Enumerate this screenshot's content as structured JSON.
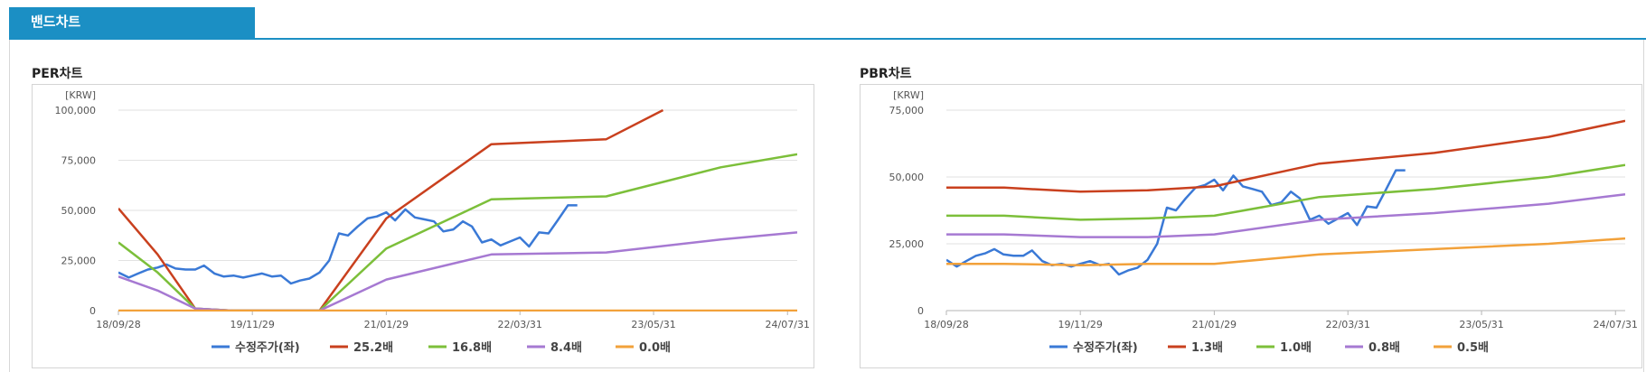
{
  "tab": {
    "label": "밴드차트"
  },
  "charts": [
    {
      "title": "PER차트"
    },
    {
      "title": "PBR차트"
    }
  ],
  "chart_data": [
    {
      "type": "line",
      "title": "PER차트",
      "unit_label": "[KRW]",
      "ylim": [
        0,
        100000
      ],
      "yticks": [
        0,
        25000,
        50000,
        75000,
        100000
      ],
      "ytick_labels": [
        "0",
        "25,000",
        "50,000",
        "75,000",
        "100,000"
      ],
      "xlim": [
        "2018-09-28",
        "2024-08-31"
      ],
      "xticks": [
        "2018-09-28",
        "2019-11-29",
        "2021-01-29",
        "2022-03-31",
        "2023-05-31",
        "2024-07-31"
      ],
      "xtick_labels": [
        "18/09/28",
        "19/11/29",
        "21/01/29",
        "22/03/31",
        "23/05/31",
        "24/07/31"
      ],
      "grid": true,
      "legend_position": "bottom",
      "series": [
        {
          "name": "수정주가(좌)",
          "color": "#3a79d6",
          "points": [
            [
              "2018-09-28",
              19000
            ],
            [
              "2018-10-31",
              16500
            ],
            [
              "2018-11-30",
              18500
            ],
            [
              "2018-12-31",
              20500
            ],
            [
              "2019-01-31",
              21500
            ],
            [
              "2019-02-28",
              23000
            ],
            [
              "2019-03-29",
              21000
            ],
            [
              "2019-04-30",
              20500
            ],
            [
              "2019-05-31",
              20500
            ],
            [
              "2019-06-28",
              22500
            ],
            [
              "2019-07-31",
              18500
            ],
            [
              "2019-08-30",
              17000
            ],
            [
              "2019-09-30",
              17500
            ],
            [
              "2019-10-31",
              16500
            ],
            [
              "2019-11-29",
              17500
            ],
            [
              "2019-12-30",
              18500
            ],
            [
              "2020-01-31",
              17000
            ],
            [
              "2020-02-28",
              17500
            ],
            [
              "2020-03-31",
              13500
            ],
            [
              "2020-04-29",
              15000
            ],
            [
              "2020-05-29",
              16000
            ],
            [
              "2020-06-30",
              19000
            ],
            [
              "2020-07-31",
              25000
            ],
            [
              "2020-08-31",
              38500
            ],
            [
              "2020-09-29",
              37500
            ],
            [
              "2020-10-30",
              42000
            ],
            [
              "2020-11-30",
              46000
            ],
            [
              "2020-12-30",
              47000
            ],
            [
              "2021-01-29",
              49000
            ],
            [
              "2021-02-26",
              45000
            ],
            [
              "2021-03-31",
              50500
            ],
            [
              "2021-04-30",
              46500
            ],
            [
              "2021-05-31",
              45500
            ],
            [
              "2021-06-30",
              44500
            ],
            [
              "2021-07-30",
              39500
            ],
            [
              "2021-08-31",
              40500
            ],
            [
              "2021-09-30",
              44500
            ],
            [
              "2021-10-29",
              42000
            ],
            [
              "2021-11-30",
              34000
            ],
            [
              "2021-12-30",
              35500
            ],
            [
              "2022-01-28",
              32500
            ],
            [
              "2022-02-28",
              34500
            ],
            [
              "2022-03-31",
              36500
            ],
            [
              "2022-04-29",
              32000
            ],
            [
              "2022-05-31",
              39000
            ],
            [
              "2022-06-30",
              38500
            ],
            [
              "2022-07-29",
              45000
            ],
            [
              "2022-08-31",
              52500
            ],
            [
              "2022-09-30",
              52500
            ]
          ]
        },
        {
          "name": "25.2배",
          "color": "#c9401e",
          "points": [
            [
              "2018-09-28",
              51000
            ],
            [
              "2019-01-31",
              28000
            ],
            [
              "2019-05-31",
              1000
            ],
            [
              "2019-09-30",
              0
            ],
            [
              "2020-06-30",
              0
            ],
            [
              "2021-01-29",
              46000
            ],
            [
              "2021-12-30",
              83000
            ],
            [
              "2022-12-31",
              85500
            ],
            [
              "2023-06-30",
              100000
            ]
          ]
        },
        {
          "name": "16.8배",
          "color": "#7cbf3a",
          "points": [
            [
              "2018-09-28",
              34000
            ],
            [
              "2019-01-31",
              19000
            ],
            [
              "2019-05-31",
              1000
            ],
            [
              "2019-09-30",
              0
            ],
            [
              "2020-06-30",
              0
            ],
            [
              "2021-01-29",
              31000
            ],
            [
              "2021-12-30",
              55500
            ],
            [
              "2022-12-31",
              57000
            ],
            [
              "2023-12-31",
              71500
            ],
            [
              "2024-08-31",
              78000
            ]
          ]
        },
        {
          "name": "8.4배",
          "color": "#a679d2",
          "points": [
            [
              "2018-09-28",
              17000
            ],
            [
              "2019-01-31",
              10000
            ],
            [
              "2019-05-31",
              1000
            ],
            [
              "2019-09-30",
              0
            ],
            [
              "2020-06-30",
              0
            ],
            [
              "2021-01-29",
              15500
            ],
            [
              "2021-12-30",
              28000
            ],
            [
              "2022-12-31",
              29000
            ],
            [
              "2023-12-31",
              35500
            ],
            [
              "2024-08-31",
              39000
            ]
          ]
        },
        {
          "name": "0.0배",
          "color": "#f2a13a",
          "points": [
            [
              "2018-09-28",
              0
            ],
            [
              "2024-08-31",
              0
            ]
          ]
        }
      ]
    },
    {
      "type": "line",
      "title": "PBR차트",
      "unit_label": "[KRW]",
      "ylim": [
        0,
        75000
      ],
      "yticks": [
        0,
        25000,
        50000,
        75000
      ],
      "ytick_labels": [
        "0",
        "25,000",
        "50,000",
        "75,000"
      ],
      "xlim": [
        "2018-09-28",
        "2024-08-31"
      ],
      "xticks": [
        "2018-09-28",
        "2019-11-29",
        "2021-01-29",
        "2022-03-31",
        "2023-05-31",
        "2024-07-31"
      ],
      "xtick_labels": [
        "18/09/28",
        "19/11/29",
        "21/01/29",
        "22/03/31",
        "23/05/31",
        "24/07/31"
      ],
      "grid": true,
      "legend_position": "bottom",
      "series": [
        {
          "name": "수정주가(좌)",
          "color": "#3a79d6",
          "points": [
            [
              "2018-09-28",
              19000
            ],
            [
              "2018-10-31",
              16500
            ],
            [
              "2018-11-30",
              18500
            ],
            [
              "2018-12-31",
              20500
            ],
            [
              "2019-01-31",
              21500
            ],
            [
              "2019-02-28",
              23000
            ],
            [
              "2019-03-29",
              21000
            ],
            [
              "2019-04-30",
              20500
            ],
            [
              "2019-05-31",
              20500
            ],
            [
              "2019-06-28",
              22500
            ],
            [
              "2019-07-31",
              18500
            ],
            [
              "2019-08-30",
              17000
            ],
            [
              "2019-09-30",
              17500
            ],
            [
              "2019-10-31",
              16500
            ],
            [
              "2019-11-29",
              17500
            ],
            [
              "2019-12-30",
              18500
            ],
            [
              "2020-01-31",
              17000
            ],
            [
              "2020-02-28",
              17500
            ],
            [
              "2020-03-31",
              13500
            ],
            [
              "2020-04-29",
              15000
            ],
            [
              "2020-05-29",
              16000
            ],
            [
              "2020-06-30",
              19000
            ],
            [
              "2020-07-31",
              25000
            ],
            [
              "2020-08-31",
              38500
            ],
            [
              "2020-09-29",
              37500
            ],
            [
              "2020-10-30",
              42000
            ],
            [
              "2020-11-30",
              46000
            ],
            [
              "2020-12-30",
              47000
            ],
            [
              "2021-01-29",
              49000
            ],
            [
              "2021-02-26",
              45000
            ],
            [
              "2021-03-31",
              50500
            ],
            [
              "2021-04-30",
              46500
            ],
            [
              "2021-05-31",
              45500
            ],
            [
              "2021-06-30",
              44500
            ],
            [
              "2021-07-30",
              39500
            ],
            [
              "2021-08-31",
              40500
            ],
            [
              "2021-09-30",
              44500
            ],
            [
              "2021-10-29",
              42000
            ],
            [
              "2021-11-30",
              34000
            ],
            [
              "2021-12-30",
              35500
            ],
            [
              "2022-01-28",
              32500
            ],
            [
              "2022-02-28",
              34500
            ],
            [
              "2022-03-31",
              36500
            ],
            [
              "2022-04-29",
              32000
            ],
            [
              "2022-05-31",
              39000
            ],
            [
              "2022-06-30",
              38500
            ],
            [
              "2022-07-29",
              45000
            ],
            [
              "2022-08-31",
              52500
            ],
            [
              "2022-09-30",
              52500
            ]
          ]
        },
        {
          "name": "1.3배",
          "color": "#c9401e",
          "points": [
            [
              "2018-09-28",
              46000
            ],
            [
              "2019-03-31",
              46000
            ],
            [
              "2019-11-29",
              44500
            ],
            [
              "2020-06-30",
              45000
            ],
            [
              "2021-01-29",
              46500
            ],
            [
              "2021-12-30",
              55000
            ],
            [
              "2022-12-31",
              59000
            ],
            [
              "2023-12-31",
              65000
            ],
            [
              "2024-08-31",
              71000
            ]
          ]
        },
        {
          "name": "1.0배",
          "color": "#7cbf3a",
          "points": [
            [
              "2018-09-28",
              35500
            ],
            [
              "2019-03-31",
              35500
            ],
            [
              "2019-11-29",
              34000
            ],
            [
              "2020-06-30",
              34500
            ],
            [
              "2021-01-29",
              35500
            ],
            [
              "2021-12-30",
              42500
            ],
            [
              "2022-12-31",
              45500
            ],
            [
              "2023-12-31",
              50000
            ],
            [
              "2024-08-31",
              54500
            ]
          ]
        },
        {
          "name": "0.8배",
          "color": "#a679d2",
          "points": [
            [
              "2018-09-28",
              28500
            ],
            [
              "2019-03-31",
              28500
            ],
            [
              "2019-11-29",
              27500
            ],
            [
              "2020-06-30",
              27500
            ],
            [
              "2021-01-29",
              28500
            ],
            [
              "2021-12-30",
              34000
            ],
            [
              "2022-12-31",
              36500
            ],
            [
              "2023-12-31",
              40000
            ],
            [
              "2024-08-31",
              43500
            ]
          ]
        },
        {
          "name": "0.5배",
          "color": "#f2a13a",
          "points": [
            [
              "2018-09-28",
              17500
            ],
            [
              "2019-03-31",
              17500
            ],
            [
              "2019-11-29",
              17000
            ],
            [
              "2020-06-30",
              17500
            ],
            [
              "2021-01-29",
              17500
            ],
            [
              "2021-12-30",
              21000
            ],
            [
              "2022-12-31",
              23000
            ],
            [
              "2023-12-31",
              25000
            ],
            [
              "2024-08-31",
              27000
            ]
          ]
        }
      ]
    }
  ]
}
